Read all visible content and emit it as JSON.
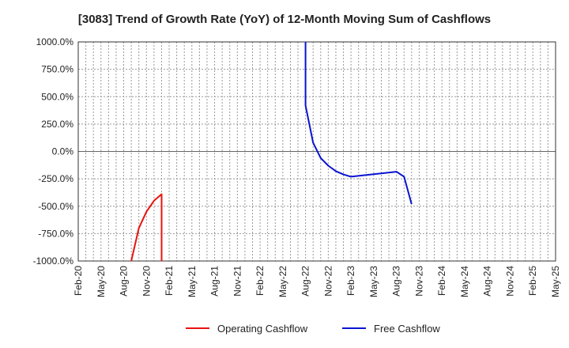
{
  "chart_data": {
    "type": "line",
    "title": "[3083]  Trend of Growth Rate (YoY) of 12-Month Moving Sum of Cashflows",
    "xlabel": "",
    "ylabel": "",
    "grid": true,
    "legend_position": "bottom",
    "ylim": [
      -1000,
      1000
    ],
    "y_ticks": [
      "1000.0%",
      "750.0%",
      "500.0%",
      "250.0%",
      "0.0%",
      "-250.0%",
      "-500.0%",
      "-750.0%",
      "-1000.0%"
    ],
    "y_tick_values": [
      1000,
      750,
      500,
      250,
      0,
      -250,
      -500,
      -750,
      -1000
    ],
    "x_ticks": [
      "Feb-20",
      "May-20",
      "Aug-20",
      "Nov-20",
      "Feb-21",
      "May-21",
      "Aug-21",
      "Nov-21",
      "Feb-22",
      "May-22",
      "Aug-22",
      "Nov-22",
      "Feb-23",
      "May-23",
      "Aug-23",
      "Nov-23",
      "Feb-24",
      "May-24",
      "Aug-24",
      "Nov-24",
      "Feb-25",
      "May-25"
    ],
    "series": [
      {
        "name": "Operating Cashflow",
        "color": "#e8140f",
        "points": [
          [
            "Sep-20",
            -1000
          ],
          [
            "Oct-20",
            -700
          ],
          [
            "Nov-20",
            -550
          ],
          [
            "Dec-20",
            -450
          ],
          [
            "Jan-21",
            -390
          ],
          [
            "Jan-21",
            -1000
          ]
        ]
      },
      {
        "name": "Free Cashflow",
        "color": "#0a14d0",
        "points": [
          [
            "Aug-22",
            1000
          ],
          [
            "Aug-22",
            420
          ],
          [
            "Sep-22",
            80
          ],
          [
            "Oct-22",
            -60
          ],
          [
            "Nov-22",
            -130
          ],
          [
            "Dec-22",
            -180
          ],
          [
            "Jan-23",
            -210
          ],
          [
            "Feb-23",
            -230
          ],
          [
            "Aug-23",
            -185
          ],
          [
            "Sep-23",
            -230
          ],
          [
            "Oct-23",
            -480
          ]
        ]
      }
    ]
  }
}
